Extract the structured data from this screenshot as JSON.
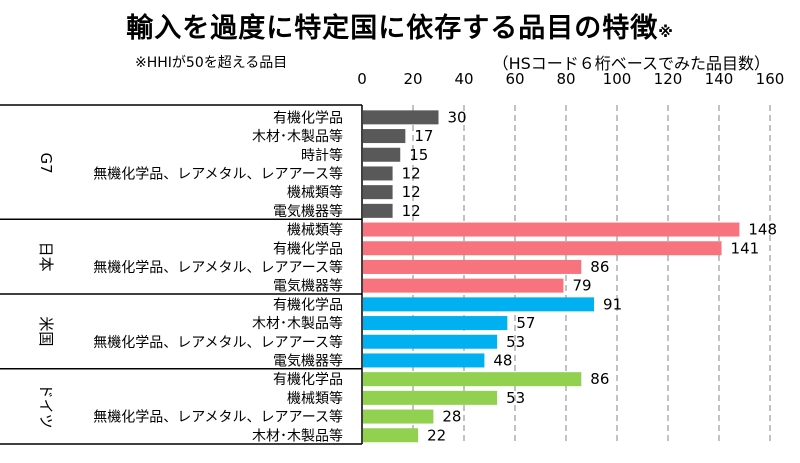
{
  "title": "輸入を過度に特定国に依存する品目の特徴",
  "title_mark": "※",
  "note": "※HHIが50を超える品目",
  "unit_label": "（HSコード６桁ベースでみた品目数）",
  "chart_data": {
    "type": "bar",
    "orientation": "horizontal",
    "xlim": [
      0,
      160
    ],
    "x_ticks": [
      0,
      20,
      40,
      60,
      80,
      100,
      120,
      140,
      160
    ],
    "x_tick_labels": [
      "0",
      "20",
      "40",
      "60",
      "80",
      "100",
      "120",
      "140",
      "160"
    ],
    "grid": "vertical dashed",
    "groups": [
      {
        "name": "G7",
        "color": "#595959",
        "items": [
          {
            "label": "有機化学品",
            "value": 30
          },
          {
            "label": "木材･木製品等",
            "value": 17
          },
          {
            "label": "時計等",
            "value": 15
          },
          {
            "label": "無機化学品、レアメタル、レアアース等",
            "value": 12
          },
          {
            "label": "機械類等",
            "value": 12
          },
          {
            "label": "電気機器等",
            "value": 12
          }
        ]
      },
      {
        "name": "日本",
        "color": "#f7747f",
        "items": [
          {
            "label": "機械類等",
            "value": 148
          },
          {
            "label": "有機化学品",
            "value": 141
          },
          {
            "label": "無機化学品、レアメタル、レアアース等",
            "value": 86
          },
          {
            "label": "電気機器等",
            "value": 79
          }
        ]
      },
      {
        "name": "米国",
        "color": "#00b0f0",
        "items": [
          {
            "label": "有機化学品",
            "value": 91
          },
          {
            "label": "木材･木製品等",
            "value": 57
          },
          {
            "label": "無機化学品、レアメタル、レアアース等",
            "value": 53
          },
          {
            "label": "電気機器等",
            "value": 48
          }
        ]
      },
      {
        "name": "ドイツ",
        "color": "#92d050",
        "items": [
          {
            "label": "有機化学品",
            "value": 86
          },
          {
            "label": "機械類等",
            "value": 53
          },
          {
            "label": "無機化学品、レアメタル、レアアース等",
            "value": 28
          },
          {
            "label": "木材･木製品等",
            "value": 22
          }
        ]
      }
    ]
  }
}
